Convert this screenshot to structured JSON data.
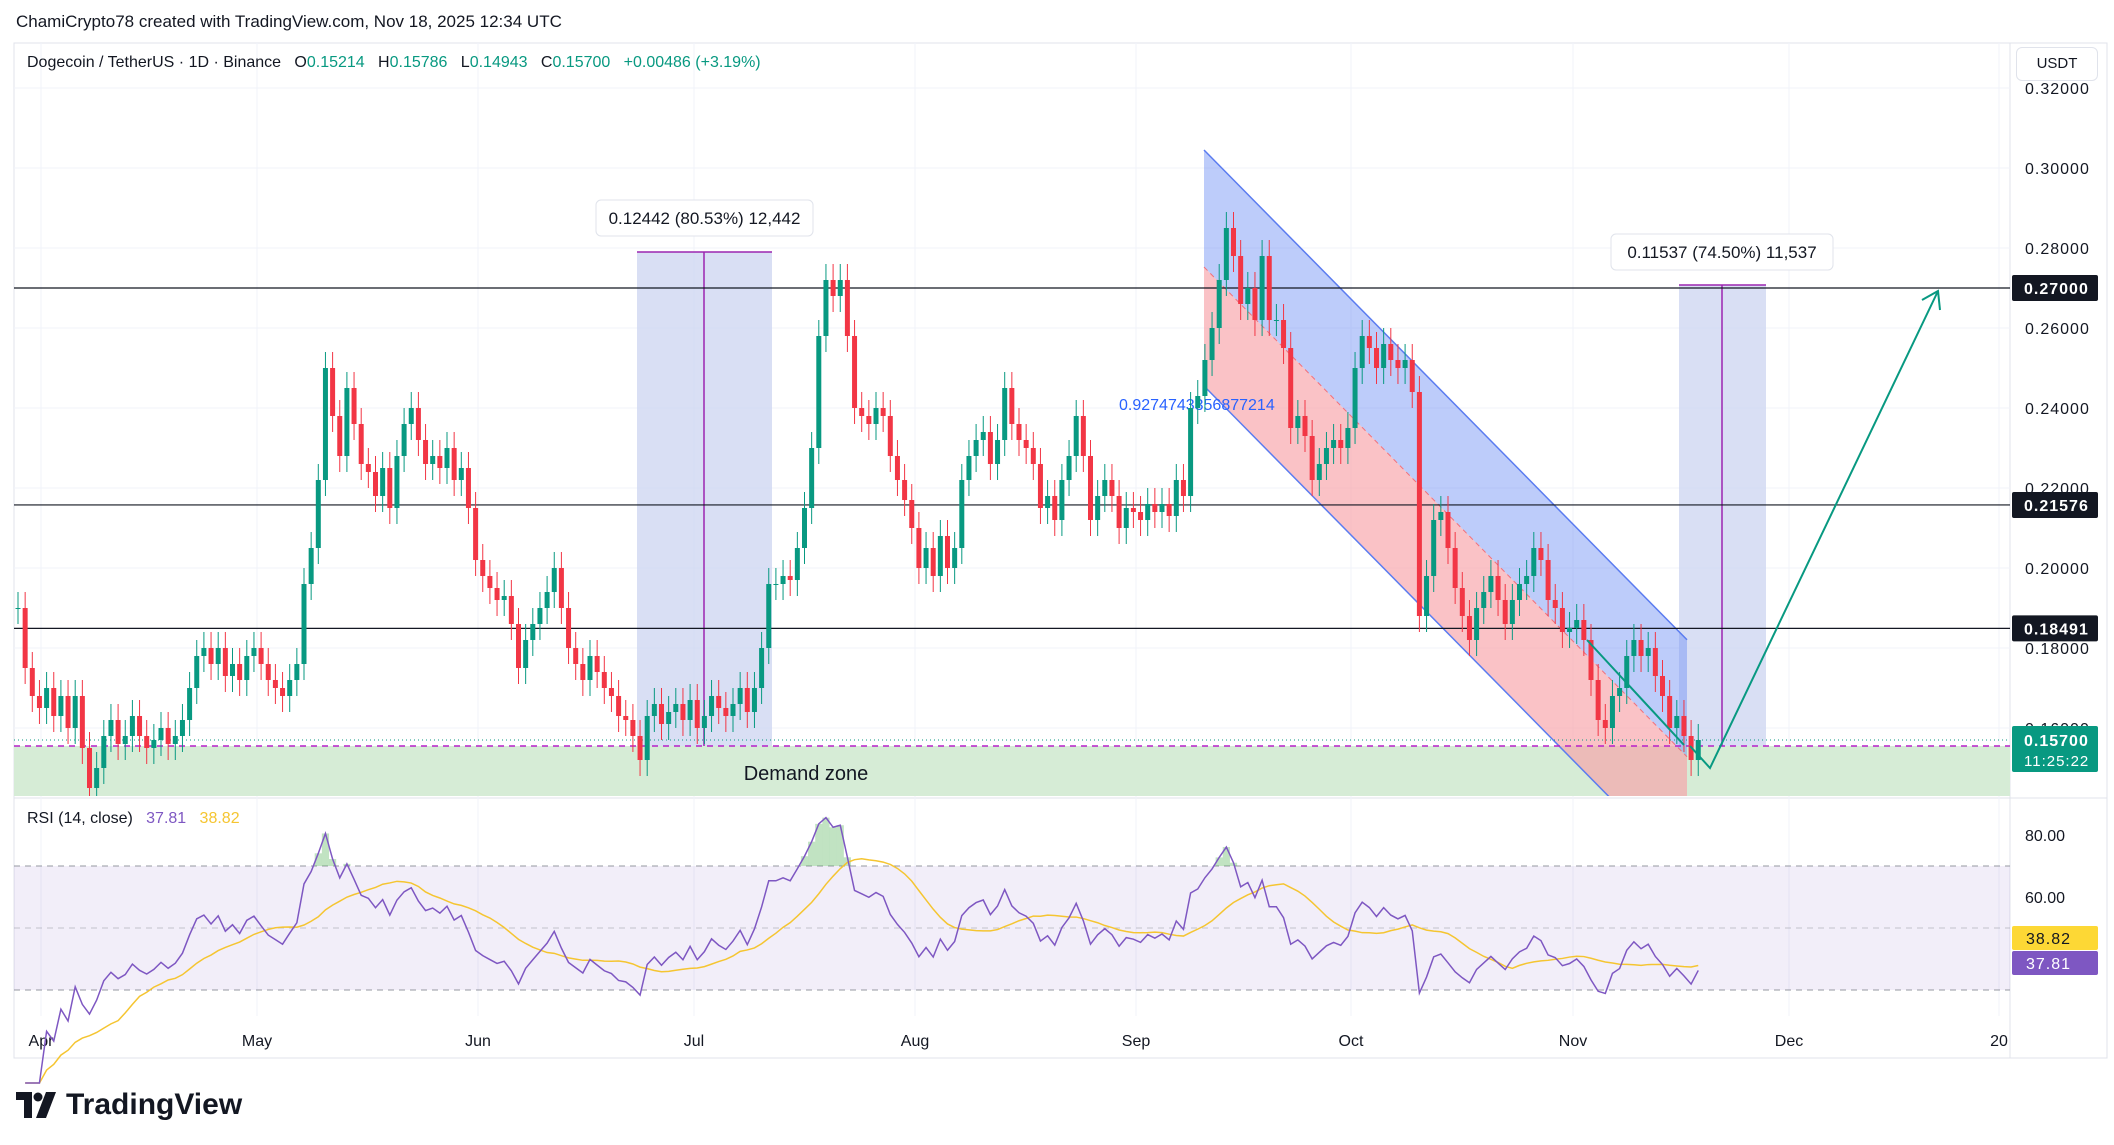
{
  "credit": "ChamiCrypto78 created with TradingView.com, Nov 18, 2025 12:34 UTC",
  "legend": {
    "symbol": "Dogecoin / TetherUS · 1D · Binance",
    "o_label": "O",
    "o": "0.15214",
    "h_label": "H",
    "h": "0.15786",
    "l_label": "L",
    "l": "0.14943",
    "c_label": "C",
    "c": "0.15700",
    "change": "+0.00486 (+3.19%)"
  },
  "currency_button": "USDT",
  "rsi_legend": {
    "label": "RSI (14, close)",
    "rsi": "37.81",
    "signal": "38.82"
  },
  "logo_text": "TradingView",
  "colors": {
    "up": "#089981",
    "down": "#f23645",
    "rsi": "#7e57c2",
    "rsi_ma": "#f5c531",
    "channel_upper": "#6d8ff5",
    "channel_lower": "#f7a1a8",
    "demand": "#d6ecd6",
    "measure": "#c9d2f0"
  },
  "annotations": {
    "measure_left": "0.12442 (80.53%) 12,442",
    "measure_right": "0.11537 (74.50%) 11,537",
    "channel_value": "0.9274743356877214",
    "demand_zone": "Demand zone"
  },
  "chart_data": [
    {
      "type": "candlestick",
      "title": "Dogecoin / TetherUS · 1D · Binance",
      "start_date": "2025-03-28",
      "end_date": "2025-11-18",
      "ylim": [
        0.145,
        0.31
      ],
      "y_ticks": [
        "0.32000",
        "0.30000",
        "0.28000",
        "0.26000",
        "0.24000",
        "0.22000",
        "0.20000",
        "0.18000",
        "0.16000"
      ],
      "x_ticks": [
        "Apr",
        "May",
        "Jun",
        "Jul",
        "Aug",
        "Sep",
        "Oct",
        "Nov",
        "Dec",
        "20"
      ],
      "closes": [
        0.19,
        0.175,
        0.168,
        0.165,
        0.17,
        0.163,
        0.168,
        0.16,
        0.168,
        0.155,
        0.145,
        0.15,
        0.158,
        0.162,
        0.156,
        0.158,
        0.163,
        0.158,
        0.155,
        0.157,
        0.16,
        0.156,
        0.158,
        0.162,
        0.17,
        0.178,
        0.18,
        0.176,
        0.18,
        0.173,
        0.176,
        0.172,
        0.178,
        0.18,
        0.176,
        0.172,
        0.17,
        0.168,
        0.172,
        0.176,
        0.196,
        0.205,
        0.222,
        0.25,
        0.238,
        0.228,
        0.245,
        0.236,
        0.226,
        0.224,
        0.218,
        0.225,
        0.215,
        0.228,
        0.236,
        0.24,
        0.232,
        0.226,
        0.228,
        0.225,
        0.23,
        0.222,
        0.225,
        0.215,
        0.202,
        0.198,
        0.195,
        0.192,
        0.193,
        0.186,
        0.175,
        0.182,
        0.186,
        0.19,
        0.194,
        0.2,
        0.19,
        0.18,
        0.176,
        0.172,
        0.178,
        0.174,
        0.17,
        0.168,
        0.163,
        0.162,
        0.158,
        0.152,
        0.163,
        0.166,
        0.161,
        0.164,
        0.166,
        0.162,
        0.167,
        0.16,
        0.163,
        0.168,
        0.165,
        0.163,
        0.166,
        0.17,
        0.164,
        0.17,
        0.18,
        0.196,
        0.196,
        0.198,
        0.197,
        0.205,
        0.215,
        0.23,
        0.258,
        0.272,
        0.268,
        0.272,
        0.258,
        0.24,
        0.238,
        0.236,
        0.24,
        0.238,
        0.228,
        0.222,
        0.217,
        0.21,
        0.2,
        0.205,
        0.198,
        0.208,
        0.2,
        0.205,
        0.222,
        0.228,
        0.232,
        0.234,
        0.226,
        0.232,
        0.245,
        0.236,
        0.232,
        0.23,
        0.226,
        0.215,
        0.218,
        0.212,
        0.222,
        0.228,
        0.238,
        0.228,
        0.212,
        0.218,
        0.222,
        0.218,
        0.21,
        0.215,
        0.214,
        0.212,
        0.216,
        0.214,
        0.216,
        0.213,
        0.222,
        0.218,
        0.24,
        0.243,
        0.252,
        0.26,
        0.272,
        0.285,
        0.278,
        0.266,
        0.27,
        0.262,
        0.278,
        0.262,
        0.262,
        0.255,
        0.235,
        0.238,
        0.233,
        0.222,
        0.226,
        0.23,
        0.232,
        0.23,
        0.235,
        0.25,
        0.258,
        0.255,
        0.25,
        0.256,
        0.252,
        0.25,
        0.252,
        0.244,
        0.188,
        0.198,
        0.212,
        0.214,
        0.205,
        0.195,
        0.188,
        0.182,
        0.19,
        0.194,
        0.198,
        0.192,
        0.186,
        0.192,
        0.196,
        0.198,
        0.205,
        0.202,
        0.192,
        0.19,
        0.184,
        0.185,
        0.187,
        0.182,
        0.172,
        0.162,
        0.16,
        0.168,
        0.17,
        0.178,
        0.182,
        0.178,
        0.18,
        0.173,
        0.168,
        0.16,
        0.163,
        0.158,
        0.152,
        0.157
      ],
      "horizontal_levels": [
        "0.27000",
        "0.21576",
        "0.18491"
      ],
      "last_price": {
        "value": "0.15700",
        "countdown": "11:25:22"
      }
    },
    {
      "type": "line",
      "title": "RSI (14, close)",
      "y_ticks": [
        "80.00",
        "60.00"
      ],
      "bands": [
        70,
        50,
        30
      ],
      "ylim": [
        20,
        90
      ],
      "series": [
        {
          "name": "RSI",
          "last": "37.81"
        },
        {
          "name": "RSI-based MA",
          "last": "38.82"
        }
      ]
    }
  ]
}
